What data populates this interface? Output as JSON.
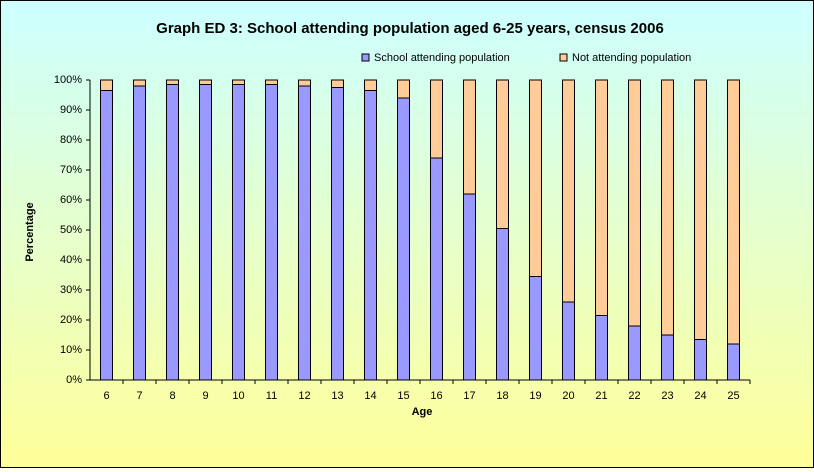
{
  "chart_data": {
    "type": "stacked-bar",
    "title": "Graph ED 3: School attending population aged 6-25 years, census 2006",
    "x_label": "Age",
    "y_label": "Percentage",
    "categories": [
      "6",
      "7",
      "8",
      "9",
      "10",
      "11",
      "12",
      "13",
      "14",
      "15",
      "16",
      "17",
      "18",
      "19",
      "20",
      "21",
      "22",
      "23",
      "24",
      "25"
    ],
    "series": [
      {
        "name": "School attending population",
        "color": "#9999ff",
        "values": [
          96.5,
          98,
          98.5,
          98.5,
          98.5,
          98.5,
          98,
          97.5,
          96.5,
          94,
          74,
          62,
          50.5,
          34.5,
          26,
          21.5,
          18,
          15,
          13.5,
          12
        ]
      },
      {
        "name": "Not attending population",
        "color": "#ffcc99",
        "values": [
          3.5,
          2,
          1.5,
          1.5,
          1.5,
          1.5,
          2,
          2.5,
          3.5,
          6,
          26,
          38,
          49.5,
          65.5,
          74,
          78.5,
          82,
          85,
          86.5,
          88
        ]
      }
    ],
    "ylim": [
      0,
      100
    ],
    "yticks": [
      {
        "value": 0,
        "label": "0%"
      },
      {
        "value": 10,
        "label": "10%"
      },
      {
        "value": 20,
        "label": "20%"
      },
      {
        "value": 30,
        "label": "30%"
      },
      {
        "value": 40,
        "label": "40%"
      },
      {
        "value": 50,
        "label": "50%"
      },
      {
        "value": 60,
        "label": "60%"
      },
      {
        "value": 70,
        "label": "70%"
      },
      {
        "value": 80,
        "label": "80%"
      },
      {
        "value": 90,
        "label": "90%"
      },
      {
        "value": 100,
        "label": "100%"
      }
    ],
    "legend": "top"
  }
}
